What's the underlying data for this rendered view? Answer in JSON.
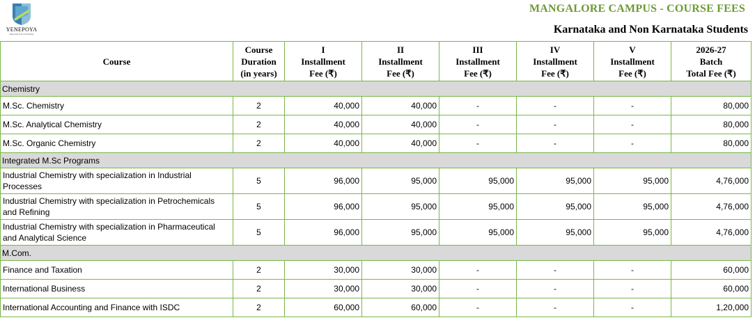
{
  "header": {
    "logo_name": "YENEPOYA",
    "logo_tagline": "(Deemed to be University)",
    "title": "MANGALORE CAMPUS - COURSE FEES",
    "subtitle": "Karnataka and Non Karnataka Students"
  },
  "table": {
    "columns": [
      {
        "lines": [
          "Course"
        ]
      },
      {
        "lines": [
          "Course",
          "Duration",
          "(in years)"
        ]
      },
      {
        "lines": [
          "I",
          "Installment",
          "Fee (₹)"
        ]
      },
      {
        "lines": [
          "II",
          "Installment",
          "Fee (₹)"
        ]
      },
      {
        "lines": [
          "III",
          "Installment",
          "Fee (₹)"
        ]
      },
      {
        "lines": [
          "IV",
          "Installment",
          "Fee (₹)"
        ]
      },
      {
        "lines": [
          "V",
          "Installment",
          "Fee (₹)"
        ]
      },
      {
        "lines": [
          "2026-27",
          "Batch",
          "Total Fee (₹)"
        ]
      }
    ],
    "sections": [
      {
        "name": "Chemistry",
        "rows": [
          {
            "course": "M.Sc. Chemistry",
            "duration": "2",
            "fees": [
              "40,000",
              "40,000",
              "-",
              "-",
              "-"
            ],
            "total": "80,000"
          },
          {
            "course": "M.Sc. Analytical Chemistry",
            "duration": "2",
            "fees": [
              "40,000",
              "40,000",
              "-",
              "-",
              "-"
            ],
            "total": "80,000"
          },
          {
            "course": "M.Sc. Organic Chemistry",
            "duration": "2",
            "fees": [
              "40,000",
              "40,000",
              "-",
              "-",
              "-"
            ],
            "total": "80,000"
          }
        ]
      },
      {
        "name": "Integrated M.Sc Programs",
        "rows": [
          {
            "course": "Industrial Chemistry with specialization in Industrial Processes",
            "duration": "5",
            "fees": [
              "96,000",
              "95,000",
              "95,000",
              "95,000",
              "95,000"
            ],
            "total": "4,76,000"
          },
          {
            "course": "Industrial Chemistry with specialization in Petrochemicals and Refining",
            "duration": "5",
            "fees": [
              "96,000",
              "95,000",
              "95,000",
              "95,000",
              "95,000"
            ],
            "total": "4,76,000"
          },
          {
            "course": "Industrial Chemistry with specialization  in Pharmaceutical and Analytical Science",
            "duration": "5",
            "fees": [
              "96,000",
              "95,000",
              "95,000",
              "95,000",
              "95,000"
            ],
            "total": "4,76,000"
          }
        ]
      },
      {
        "name": "M.Com.",
        "rows": [
          {
            "course": "Finance and Taxation",
            "duration": "2",
            "fees": [
              "30,000",
              "30,000",
              "-",
              "-",
              "-"
            ],
            "total": "60,000"
          },
          {
            "course": "International Business",
            "duration": "2",
            "fees": [
              "30,000",
              "30,000",
              "-",
              "-",
              "-"
            ],
            "total": "60,000"
          },
          {
            "course": "International Accounting and Finance with ISDC",
            "duration": "2",
            "fees": [
              "60,000",
              "60,000",
              "-",
              "-",
              "-"
            ],
            "total": "1,20,000"
          }
        ]
      }
    ]
  }
}
